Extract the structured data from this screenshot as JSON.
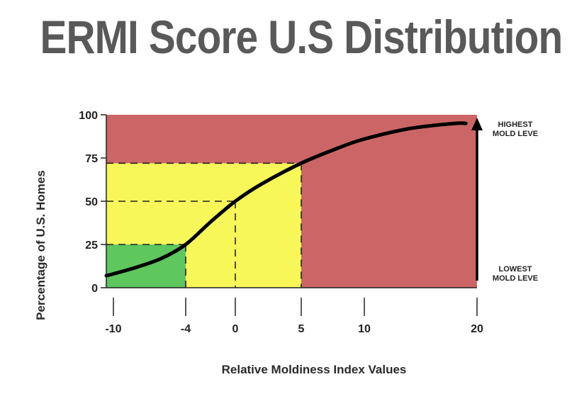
{
  "chart_data": {
    "type": "line",
    "title": "ERMI Score U.S Distribution",
    "xlabel": "Relative Moldiness Index Values",
    "ylabel": "Percentage of U.S. Homes",
    "x_ticks": [
      -10,
      -4,
      0,
      5,
      10,
      20
    ],
    "y_ticks": [
      0,
      25,
      50,
      75,
      100
    ],
    "xlim": [
      -10.8,
      20
    ],
    "ylim": [
      0,
      100
    ],
    "series": [
      {
        "x": [
          -10.8,
          -10,
          -8,
          -6,
          -4,
          -2,
          0,
          2,
          5,
          8,
          10,
          14,
          18,
          19
        ],
        "y": [
          7,
          8,
          12,
          17,
          25,
          38,
          50,
          60,
          72,
          81,
          86,
          92,
          95,
          95
        ],
        "color": "#000000"
      }
    ],
    "regions": [
      {
        "x_from": -10.8,
        "x_to": 20,
        "y_from": 0,
        "y_to": 100,
        "color": "#cc6666"
      },
      {
        "x_from": -10.8,
        "x_to": 5,
        "y_from": 0,
        "y_to": 72,
        "color": "#f7f75a"
      },
      {
        "x_from": -10.8,
        "x_to": -4,
        "y_from": 0,
        "y_to": 25,
        "color": "#5ec75e"
      }
    ],
    "guides": [
      {
        "x": -4,
        "y": 25
      },
      {
        "x": 0,
        "y": 50
      },
      {
        "x": 5,
        "y": 72
      }
    ],
    "annotations": {
      "top": [
        "HIGHEST",
        "MOLD LEVE"
      ],
      "bottom": [
        "LOWEST",
        "MOLD LEVE"
      ]
    },
    "grid": false,
    "legend": "none"
  }
}
